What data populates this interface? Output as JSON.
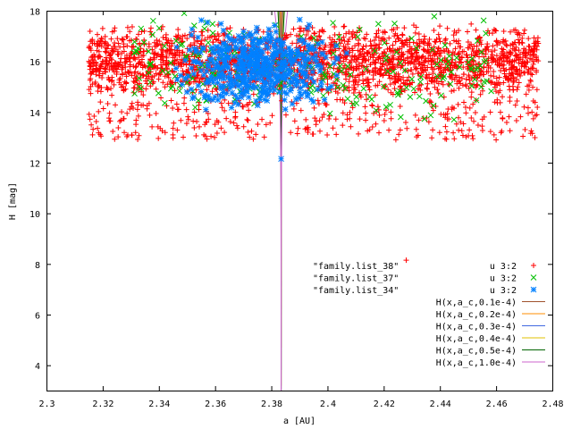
{
  "chart_data": {
    "type": "scatter",
    "title": "",
    "xlabel": "a [AU]",
    "ylabel": "H [mag]",
    "xlim": [
      2.3,
      2.48
    ],
    "ylim": [
      3,
      18
    ],
    "x_ticks": [
      "2.3",
      "2.32",
      "2.34",
      "2.36",
      "2.38",
      "2.4",
      "2.42",
      "2.44",
      "2.46",
      "2.48"
    ],
    "y_ticks": [
      "4",
      "6",
      "8",
      "10",
      "12",
      "14",
      "16",
      "18"
    ],
    "legend_position": "center-right",
    "grid": false,
    "scatter_series": [
      {
        "file": "\"family.list_38\"",
        "using": "u 3:2",
        "marker": "plus",
        "color": "#ff0000",
        "cluster": {
          "a_range": [
            2.315,
            2.475
          ],
          "h_range": [
            12.9,
            18.0
          ],
          "dense_h": [
            14.5,
            17.5
          ]
        },
        "points": [
          {
            "a": 2.428,
            "h": 8.15
          },
          {
            "a": 2.32,
            "h": 17.3
          },
          {
            "a": 2.35,
            "h": 16.9
          },
          {
            "a": 2.37,
            "h": 14.2
          },
          {
            "a": 2.4,
            "h": 15.1
          },
          {
            "a": 2.43,
            "h": 16.5
          },
          {
            "a": 2.46,
            "h": 12.9
          },
          {
            "a": 2.345,
            "h": 13.1
          },
          {
            "a": 2.356,
            "h": 13.1
          },
          {
            "a": 2.393,
            "h": 13.2
          }
        ]
      },
      {
        "file": "\"family.list_37\"",
        "using": "u 3:2",
        "marker": "cross",
        "color": "#00c000",
        "cluster": {
          "a_range": [
            2.33,
            2.46
          ],
          "h_range": [
            13.6,
            17.8
          ]
        },
        "points": [
          {
            "a": 2.349,
            "h": 17.9
          },
          {
            "a": 2.415,
            "h": 14.6
          },
          {
            "a": 2.445,
            "h": 13.7
          },
          {
            "a": 2.342,
            "h": 16.6
          },
          {
            "a": 2.43,
            "h": 15.3
          }
        ]
      },
      {
        "file": "\"family.list_34\"",
        "using": "u 3:2",
        "marker": "star",
        "color": "#0080ff",
        "cluster": {
          "a_range": [
            2.355,
            2.395
          ],
          "h_range": [
            14.7,
            17.2
          ],
          "center": [
            2.375,
            15.8
          ]
        },
        "points": [
          {
            "a": 2.3835,
            "h": 12.15
          },
          {
            "a": 2.375,
            "h": 15.8
          },
          {
            "a": 2.37,
            "h": 16.3
          },
          {
            "a": 2.38,
            "h": 15.2
          }
        ]
      }
    ],
    "curve_center_a": 2.3835,
    "curves": [
      {
        "label": "H(x,a_c,0.1e-4)",
        "c": 0.1,
        "color": "#a0522d"
      },
      {
        "label": "H(x,a_c,0.2e-4)",
        "c": 0.2,
        "color": "#ff8c00"
      },
      {
        "label": "H(x,a_c,0.3e-4)",
        "c": 0.3,
        "color": "#4169e1"
      },
      {
        "label": "H(x,a_c,0.4e-4)",
        "c": 0.4,
        "color": "#e0c000"
      },
      {
        "label": "H(x,a_c,0.5e-4)",
        "c": 0.5,
        "color": "#006400"
      },
      {
        "label": "H(x,a_c,1.0e-4)",
        "c": 1.0,
        "color": "#cc66cc"
      }
    ]
  }
}
